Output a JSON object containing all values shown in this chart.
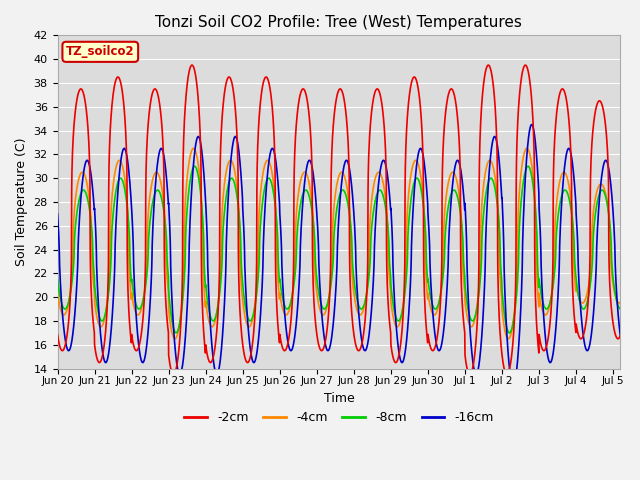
{
  "title": "Tonzi Soil CO2 Profile: Tree (West) Temperatures",
  "xlabel": "Time",
  "ylabel": "Soil Temperature (C)",
  "ylim": [
    14,
    42
  ],
  "bg_color": "#dcdcdc",
  "fig_color": "#f2f2f2",
  "grid_color": "#ffffff",
  "legend_label": "TZ_soilco2",
  "xtick_labels": [
    "Jun 20",
    "Jun 21",
    "Jun 22",
    "Jun 23",
    "Jun 24",
    "Jun 25",
    "Jun 26",
    "Jun 27",
    "Jun 28",
    "Jun 29",
    "Jun 30",
    "Jul 1",
    "Jul 2",
    "Jul 3",
    "Jul 4",
    "Jul 5"
  ],
  "series_colors": [
    "#ee0000",
    "#ff8800",
    "#00cc00",
    "#0000cc"
  ],
  "series_labels": [
    "-2cm",
    "-4cm",
    "-8cm",
    "-16cm"
  ],
  "series_lw": [
    1.2,
    1.2,
    1.2,
    1.2
  ]
}
